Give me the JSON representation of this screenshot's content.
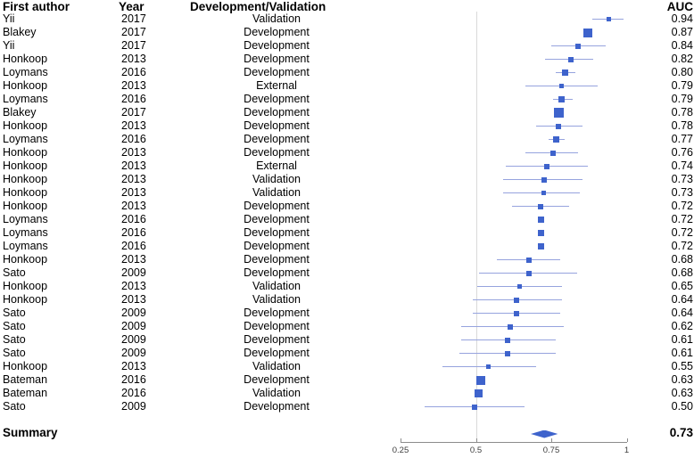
{
  "header": {
    "first_author": "First author",
    "year": "Year",
    "dev_val": "Development/Validation",
    "auc": "AUC"
  },
  "summary_row": {
    "label": "Summary",
    "auc": "0.73"
  },
  "colors": {
    "marker": "#3e63cc",
    "ci_line": "#96a3de",
    "ref_line": "#d9d9d9",
    "axis_line": "#8c8c8c",
    "tick_text": "#3c3c3c"
  },
  "chart_data": {
    "type": "scatter",
    "subtype": "forest-plot",
    "title": "",
    "xlabel": "AUC",
    "xlim": [
      0.25,
      1.0
    ],
    "x_ticks": [
      {
        "value": 0.25,
        "label": "0.25"
      },
      {
        "value": 0.5,
        "label": "0.5"
      },
      {
        "value": 0.75,
        "label": "0.75"
      },
      {
        "value": 1.0,
        "label": "1"
      }
    ],
    "reference_line_x": 0.5,
    "grid": "off",
    "legend": "none",
    "columns": [
      "First author",
      "Year",
      "Development/Validation",
      "AUC"
    ],
    "summary": {
      "label": "Summary",
      "auc_label": "0.73",
      "est": 0.73,
      "ci_low": 0.682,
      "ci_high": 0.772
    },
    "rows": [
      {
        "author": "Yii",
        "year": "2017",
        "type": "Validation",
        "auc": "0.94",
        "est": 0.94,
        "ci_low": 0.885,
        "ci_high": 0.99,
        "size": 5
      },
      {
        "author": "Blakey",
        "year": "2017",
        "type": "Development",
        "auc": "0.87",
        "est": 0.87,
        "ci_low": null,
        "ci_high": null,
        "size": 10
      },
      {
        "author": "Yii",
        "year": "2017",
        "type": "Development",
        "auc": "0.84",
        "est": 0.84,
        "ci_low": 0.75,
        "ci_high": 0.93,
        "size": 6
      },
      {
        "author": "Honkoop",
        "year": "2013",
        "type": "Development",
        "auc": "0.82",
        "est": 0.815,
        "ci_low": 0.73,
        "ci_high": 0.89,
        "size": 6
      },
      {
        "author": "Loymans",
        "year": "2016",
        "type": "Development",
        "auc": "0.80",
        "est": 0.795,
        "ci_low": 0.765,
        "ci_high": 0.83,
        "size": 7
      },
      {
        "author": "Honkoop",
        "year": "2013",
        "type": "External",
        "auc": "0.79",
        "est": 0.785,
        "ci_low": 0.665,
        "ci_high": 0.905,
        "size": 5
      },
      {
        "author": "Loymans",
        "year": "2016",
        "type": "Development",
        "auc": "0.79",
        "est": 0.785,
        "ci_low": 0.755,
        "ci_high": 0.82,
        "size": 7
      },
      {
        "author": "Blakey",
        "year": "2017",
        "type": "Development",
        "auc": "0.78",
        "est": 0.775,
        "ci_low": null,
        "ci_high": null,
        "size": 11
      },
      {
        "author": "Honkoop",
        "year": "2013",
        "type": "Development",
        "auc": "0.78",
        "est": 0.775,
        "ci_low": 0.7,
        "ci_high": 0.855,
        "size": 6
      },
      {
        "author": "Loymans",
        "year": "2016",
        "type": "Development",
        "auc": "0.77",
        "est": 0.765,
        "ci_low": 0.74,
        "ci_high": 0.795,
        "size": 7
      },
      {
        "author": "Honkoop",
        "year": "2013",
        "type": "Development",
        "auc": "0.76",
        "est": 0.755,
        "ci_low": 0.665,
        "ci_high": 0.84,
        "size": 6
      },
      {
        "author": "Honkoop",
        "year": "2013",
        "type": "External",
        "auc": "0.74",
        "est": 0.735,
        "ci_low": 0.6,
        "ci_high": 0.87,
        "size": 6
      },
      {
        "author": "Honkoop",
        "year": "2013",
        "type": "Validation",
        "auc": "0.73",
        "est": 0.725,
        "ci_low": 0.59,
        "ci_high": 0.855,
        "size": 6
      },
      {
        "author": "Honkoop",
        "year": "2013",
        "type": "Validation",
        "auc": "0.73",
        "est": 0.725,
        "ci_low": 0.59,
        "ci_high": 0.845,
        "size": 5
      },
      {
        "author": "Honkoop",
        "year": "2013",
        "type": "Development",
        "auc": "0.72",
        "est": 0.715,
        "ci_low": 0.62,
        "ci_high": 0.81,
        "size": 6
      },
      {
        "author": "Loymans",
        "year": "2016",
        "type": "Development",
        "auc": "0.72",
        "est": 0.715,
        "ci_low": null,
        "ci_high": null,
        "size": 7
      },
      {
        "author": "Loymans",
        "year": "2016",
        "type": "Development",
        "auc": "0.72",
        "est": 0.715,
        "ci_low": null,
        "ci_high": null,
        "size": 7
      },
      {
        "author": "Loymans",
        "year": "2016",
        "type": "Development",
        "auc": "0.72",
        "est": 0.715,
        "ci_low": null,
        "ci_high": null,
        "size": 7
      },
      {
        "author": "Honkoop",
        "year": "2013",
        "type": "Development",
        "auc": "0.68",
        "est": 0.675,
        "ci_low": 0.57,
        "ci_high": 0.78,
        "size": 6
      },
      {
        "author": "Sato",
        "year": "2009",
        "type": "Development",
        "auc": "0.68",
        "est": 0.675,
        "ci_low": 0.51,
        "ci_high": 0.835,
        "size": 6
      },
      {
        "author": "Honkoop",
        "year": "2013",
        "type": "Validation",
        "auc": "0.65",
        "est": 0.645,
        "ci_low": 0.505,
        "ci_high": 0.785,
        "size": 5
      },
      {
        "author": "Honkoop",
        "year": "2013",
        "type": "Validation",
        "auc": "0.64",
        "est": 0.635,
        "ci_low": 0.49,
        "ci_high": 0.785,
        "size": 6
      },
      {
        "author": "Sato",
        "year": "2009",
        "type": "Development",
        "auc": "0.64",
        "est": 0.635,
        "ci_low": 0.49,
        "ci_high": 0.78,
        "size": 6
      },
      {
        "author": "Sato",
        "year": "2009",
        "type": "Development",
        "auc": "0.62",
        "est": 0.615,
        "ci_low": 0.45,
        "ci_high": 0.79,
        "size": 6
      },
      {
        "author": "Sato",
        "year": "2009",
        "type": "Development",
        "auc": "0.61",
        "est": 0.605,
        "ci_low": 0.45,
        "ci_high": 0.765,
        "size": 6
      },
      {
        "author": "Sato",
        "year": "2009",
        "type": "Development",
        "auc": "0.61",
        "est": 0.605,
        "ci_low": 0.445,
        "ci_high": 0.765,
        "size": 6
      },
      {
        "author": "Honkoop",
        "year": "2013",
        "type": "Validation",
        "auc": "0.55",
        "est": 0.54,
        "ci_low": 0.39,
        "ci_high": 0.7,
        "size": 5
      },
      {
        "author": "Bateman",
        "year": "2016",
        "type": "Development",
        "auc": "0.63",
        "est": 0.515,
        "ci_low": null,
        "ci_high": null,
        "size": 10
      },
      {
        "author": "Bateman",
        "year": "2016",
        "type": "Validation",
        "auc": "0.63",
        "est": 0.51,
        "ci_low": null,
        "ci_high": null,
        "size": 9
      },
      {
        "author": "Sato",
        "year": "2009",
        "type": "Development",
        "auc": "0.50",
        "est": 0.495,
        "ci_low": 0.33,
        "ci_high": 0.66,
        "size": 6
      }
    ]
  }
}
